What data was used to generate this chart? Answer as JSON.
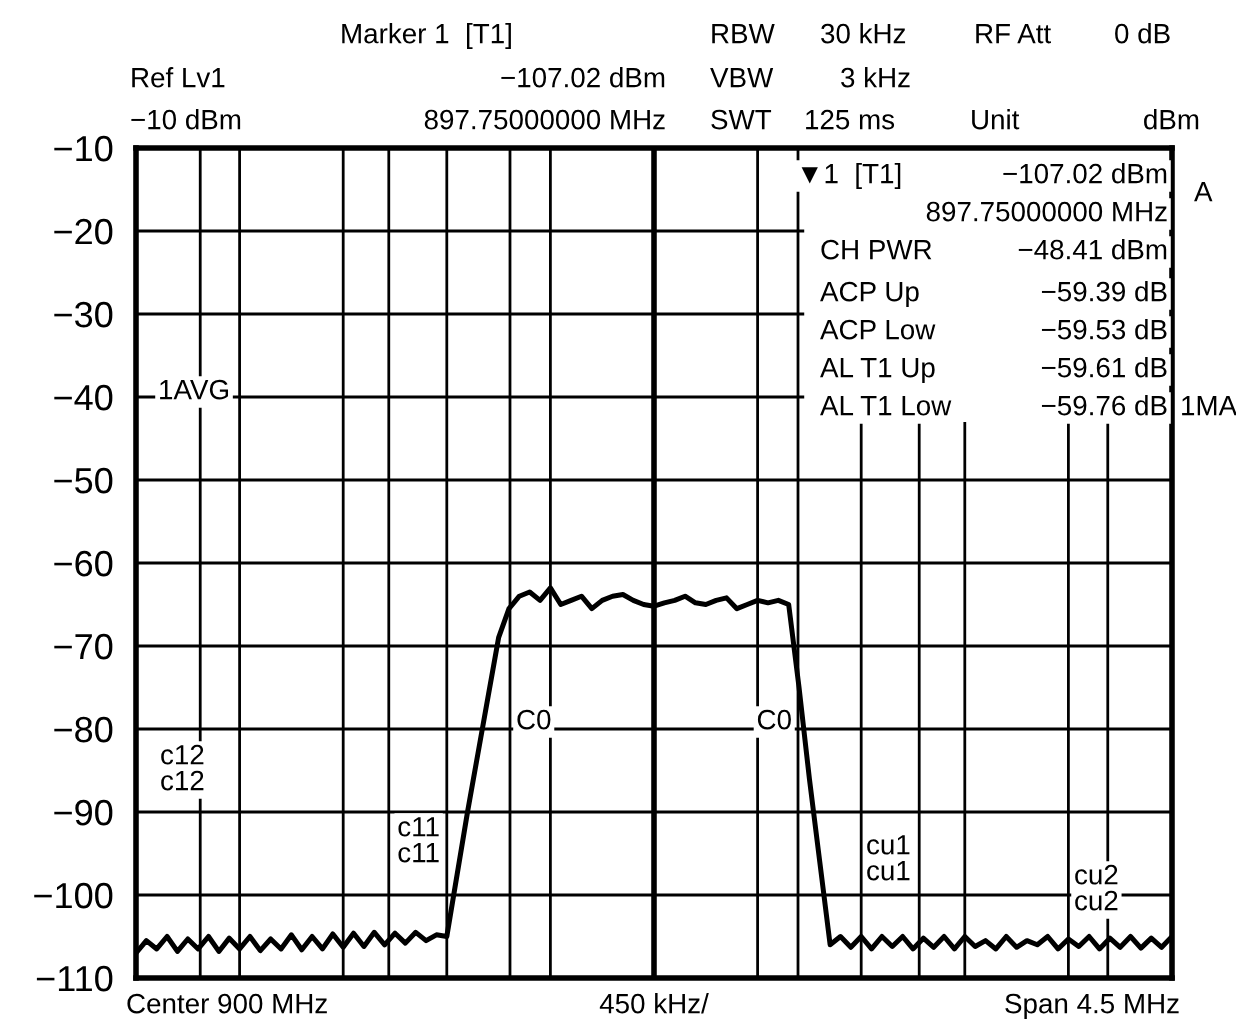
{
  "chart_data": {
    "type": "line",
    "ylim": [
      -110,
      -10
    ],
    "categories": [
      null,
      null,
      null,
      null,
      null,
      null,
      null,
      null,
      null,
      null,
      null,
      null,
      null,
      null,
      null,
      null,
      null,
      null,
      null,
      null,
      null,
      null,
      null,
      null,
      null,
      null,
      null,
      null,
      null,
      null,
      null,
      null,
      null,
      null,
      null,
      null,
      null,
      null,
      null,
      null,
      null,
      null,
      null,
      null,
      null,
      null,
      null,
      null,
      null,
      null,
      null,
      null,
      null,
      null,
      null,
      null,
      null,
      null,
      null,
      null,
      null,
      null,
      null,
      null,
      null,
      null,
      null,
      null,
      null,
      null,
      null,
      null,
      null,
      null,
      null,
      null,
      null,
      null,
      null,
      null,
      null,
      null,
      null,
      null,
      null,
      null,
      null,
      null,
      null,
      null,
      null,
      null,
      null,
      null,
      null,
      null,
      null,
      null,
      null,
      null,
      null
    ],
    "yticks": [
      {
        "value": -10,
        "label": "−10"
      },
      {
        "value": -20,
        "label": "−20"
      },
      {
        "value": -30,
        "label": "−30"
      },
      {
        "value": -40,
        "label": "−40"
      },
      {
        "value": -50,
        "label": "−50"
      },
      {
        "value": -60,
        "label": "−60"
      },
      {
        "value": -70,
        "label": "−70"
      },
      {
        "value": -80,
        "label": "−80"
      },
      {
        "value": -90,
        "label": "−90"
      },
      {
        "value": -100,
        "label": "−100"
      },
      {
        "value": -110,
        "label": "−110"
      }
    ],
    "tick_labels": "y",
    "grid": true,
    "marker": "none",
    "line_style": "solid",
    "series": [
      {
        "color": "#000000",
        "values": [
          -107,
          -105.5,
          -106.5,
          -105,
          -106.8,
          -105.3,
          -106.5,
          -105,
          -106.8,
          -105.2,
          -106.5,
          -105,
          -106.7,
          -105.3,
          -106.5,
          -104.8,
          -106.6,
          -105,
          -106.5,
          -104.7,
          -106.3,
          -104.6,
          -106.2,
          -104.5,
          -106,
          -104.6,
          -105.8,
          -104.5,
          -105.5,
          -104.8,
          -105,
          -97.5,
          -90,
          -83,
          -76,
          -69,
          -65.5,
          -64,
          -63.5,
          -64.5,
          -63,
          -65,
          -64.5,
          -64,
          -65.5,
          -64.5,
          -64,
          -63.8,
          -64.5,
          -65,
          -65.2,
          -64.8,
          -64.5,
          -64,
          -64.8,
          -65,
          -64.5,
          -64.2,
          -65.5,
          -65,
          -64.5,
          -64.8,
          -64.5,
          -65,
          -75,
          -86,
          -96,
          -106,
          -105,
          -106.3,
          -105,
          -106.5,
          -105,
          -106.2,
          -105,
          -106.5,
          -105.2,
          -106.3,
          -105,
          -106.5,
          -105,
          -106.2,
          -105.5,
          -106.5,
          -105,
          -106.3,
          -105.5,
          -106,
          -105,
          -106.5,
          -105.3,
          -106.2,
          -105,
          -106.5,
          -105.2,
          -106.3,
          -105,
          -106.4,
          -105.2,
          -106.3,
          -105
        ]
      }
    ],
    "annotations": [
      "Marker 1  [T1]",
      "RBW",
      "30 kHz",
      "RF Att",
      "0 dB",
      "Ref Lv1",
      "−107.02 dBm",
      "VBW",
      "3 kHz",
      "−10 dBm",
      "897.75000000 MHz",
      "SWT",
      "125 ms",
      "Unit",
      "dBm",
      "▼1  [T1]",
      "−107.02 dBm",
      "897.75000000 MHz",
      "CH PWR",
      "−48.41 dBm",
      "ACP Up",
      "−59.39 dB",
      "ACP Low",
      "−59.53 dB",
      "AL T1 Up",
      "−59.61 dB",
      "AL T1 Low",
      "−59.76 dB",
      "A",
      "1MA",
      "1AVG",
      "Center 900 MHz",
      "450 kHz/",
      "Span 4.5 MHz",
      "c12\nc12",
      "c11\nc11",
      "C0",
      "C0",
      "cu1\ncu1",
      "cu2\ncu2"
    ]
  }
}
